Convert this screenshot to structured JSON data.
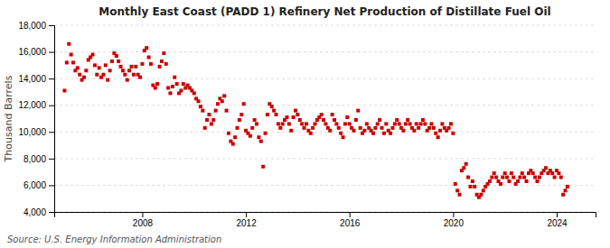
{
  "chart_data": {
    "type": "scatter",
    "title": "Monthly East Coast (PADD 1) Refinery Net Production of Distillate Fuel Oil",
    "ylabel": "Thousand Barrels",
    "annotations": [
      "Source: U.S. Energy Information Administration"
    ],
    "color": "#cc0000",
    "marker": "square",
    "grid": true,
    "xlim": [
      2004.6,
      2025.5
    ],
    "xticks": [
      2008,
      2012,
      2016,
      2020,
      2024
    ],
    "ylim": [
      4000,
      18000
    ],
    "yticks": [
      {
        "value": 4000,
        "label": "4,000"
      },
      {
        "value": 6000,
        "label": "6,000"
      },
      {
        "value": 8000,
        "label": "8,000"
      },
      {
        "value": 10000,
        "label": "10,000"
      },
      {
        "value": 12000,
        "label": "12,000"
      },
      {
        "value": 14000,
        "label": "14,000"
      },
      {
        "value": 16000,
        "label": "16,000"
      },
      {
        "value": 18000,
        "label": "18,000"
      }
    ],
    "x": [
      2005.0,
      2005.083,
      2005.167,
      2005.25,
      2005.333,
      2005.417,
      2005.5,
      2005.583,
      2005.667,
      2005.75,
      2005.833,
      2005.917,
      2006.0,
      2006.083,
      2006.167,
      2006.25,
      2006.333,
      2006.417,
      2006.5,
      2006.583,
      2006.667,
      2006.75,
      2006.833,
      2006.917,
      2007.0,
      2007.083,
      2007.167,
      2007.25,
      2007.333,
      2007.417,
      2007.5,
      2007.583,
      2007.667,
      2007.75,
      2007.833,
      2007.917,
      2008.0,
      2008.083,
      2008.167,
      2008.25,
      2008.333,
      2008.417,
      2008.5,
      2008.583,
      2008.667,
      2008.75,
      2008.833,
      2008.917,
      2009.0,
      2009.083,
      2009.167,
      2009.25,
      2009.333,
      2009.417,
      2009.5,
      2009.583,
      2009.667,
      2009.75,
      2009.833,
      2009.917,
      2010.0,
      2010.083,
      2010.167,
      2010.25,
      2010.333,
      2010.417,
      2010.5,
      2010.583,
      2010.667,
      2010.75,
      2010.833,
      2010.917,
      2011.0,
      2011.083,
      2011.167,
      2011.25,
      2011.333,
      2011.417,
      2011.5,
      2011.583,
      2011.667,
      2011.75,
      2011.833,
      2011.917,
      2012.0,
      2012.083,
      2012.167,
      2012.25,
      2012.333,
      2012.417,
      2012.5,
      2012.583,
      2012.667,
      2012.75,
      2012.833,
      2012.917,
      2013.0,
      2013.083,
      2013.167,
      2013.25,
      2013.333,
      2013.417,
      2013.5,
      2013.583,
      2013.667,
      2013.75,
      2013.833,
      2013.917,
      2014.0,
      2014.083,
      2014.167,
      2014.25,
      2014.333,
      2014.417,
      2014.5,
      2014.583,
      2014.667,
      2014.75,
      2014.833,
      2014.917,
      2015.0,
      2015.083,
      2015.167,
      2015.25,
      2015.333,
      2015.417,
      2015.5,
      2015.583,
      2015.667,
      2015.75,
      2015.833,
      2015.917,
      2016.0,
      2016.083,
      2016.167,
      2016.25,
      2016.333,
      2016.417,
      2016.5,
      2016.583,
      2016.667,
      2016.75,
      2016.833,
      2016.917,
      2017.0,
      2017.083,
      2017.167,
      2017.25,
      2017.333,
      2017.417,
      2017.5,
      2017.583,
      2017.667,
      2017.75,
      2017.833,
      2017.917,
      2018.0,
      2018.083,
      2018.167,
      2018.25,
      2018.333,
      2018.417,
      2018.5,
      2018.583,
      2018.667,
      2018.75,
      2018.833,
      2018.917,
      2019.0,
      2019.083,
      2019.167,
      2019.25,
      2019.333,
      2019.417,
      2019.5,
      2019.583,
      2019.667,
      2019.75,
      2019.833,
      2019.917,
      2020.0,
      2020.083,
      2020.167,
      2020.25,
      2020.333,
      2020.417,
      2020.5,
      2020.583,
      2020.667,
      2020.75,
      2020.833,
      2020.917,
      2021.0,
      2021.083,
      2021.167,
      2021.25,
      2021.333,
      2021.417,
      2021.5,
      2021.583,
      2021.667,
      2021.75,
      2021.833,
      2021.917,
      2022.0,
      2022.083,
      2022.167,
      2022.25,
      2022.333,
      2022.417,
      2022.5,
      2022.583,
      2022.667,
      2022.75,
      2022.833,
      2022.917,
      2023.0,
      2023.083,
      2023.167,
      2023.25,
      2023.333,
      2023.417,
      2023.5,
      2023.583,
      2023.667,
      2023.75,
      2023.833,
      2023.917,
      2024.0,
      2024.083,
      2024.167,
      2024.25,
      2024.333,
      2024.417
    ],
    "values": [
      13100,
      15200,
      16600,
      15800,
      15200,
      14600,
      14800,
      14300,
      13900,
      14100,
      14600,
      15400,
      15600,
      15800,
      15000,
      14300,
      14800,
      14100,
      14300,
      15000,
      13900,
      14600,
      15300,
      15900,
      15700,
      15300,
      14900,
      14600,
      14300,
      13900,
      14600,
      14900,
      14300,
      14900,
      14300,
      14100,
      15100,
      16100,
      16300,
      15600,
      15100,
      13500,
      13300,
      13600,
      14900,
      15300,
      15900,
      15100,
      13300,
      12900,
      13400,
      14100,
      13600,
      12900,
      13100,
      13600,
      13300,
      13500,
      13300,
      13100,
      12900,
      12500,
      12300,
      11900,
      11600,
      10300,
      10900,
      11300,
      10600,
      10900,
      11600,
      12100,
      12500,
      12300,
      12700,
      11600,
      9900,
      9300,
      9100,
      9600,
      10300,
      10900,
      11300,
      12100,
      10100,
      9900,
      9700,
      10300,
      10900,
      10600,
      9600,
      9300,
      7400,
      9900,
      11300,
      12100,
      11900,
      11600,
      11300,
      10600,
      10300,
      10600,
      10900,
      11100,
      10600,
      10100,
      11100,
      11600,
      11300,
      10900,
      10600,
      10300,
      10600,
      10100,
      9900,
      10300,
      10600,
      10900,
      11100,
      11300,
      10900,
      10600,
      10300,
      10100,
      11300,
      10900,
      10600,
      10300,
      9900,
      9600,
      10600,
      11100,
      10600,
      10300,
      10100,
      10900,
      11600,
      10300,
      9900,
      10100,
      10600,
      10300,
      10100,
      9900,
      10300,
      10600,
      10900,
      10300,
      9900,
      10600,
      10100,
      9900,
      10300,
      10600,
      10900,
      10600,
      10300,
      10100,
      10600,
      10900,
      10600,
      10300,
      10100,
      10600,
      10300,
      10600,
      10900,
      10600,
      10100,
      10300,
      10600,
      10300,
      9900,
      9600,
      10100,
      10600,
      10300,
      10100,
      10300,
      10600,
      9900,
      6100,
      5600,
      5300,
      7100,
      7300,
      7600,
      6600,
      5900,
      6300,
      5900,
      5300,
      5100,
      5300,
      5600,
      5900,
      6100,
      6300,
      6600,
      6900,
      6600,
      6300,
      6100,
      6600,
      6900,
      6600,
      6300,
      6900,
      6600,
      6100,
      6300,
      6600,
      6900,
      6600,
      6300,
      6900,
      7100,
      6900,
      6600,
      6300,
      6600,
      6900,
      7100,
      7300,
      6900,
      7100,
      6900,
      6600,
      7100,
      6900,
      6600,
      5300,
      5600,
      5900
    ]
  }
}
